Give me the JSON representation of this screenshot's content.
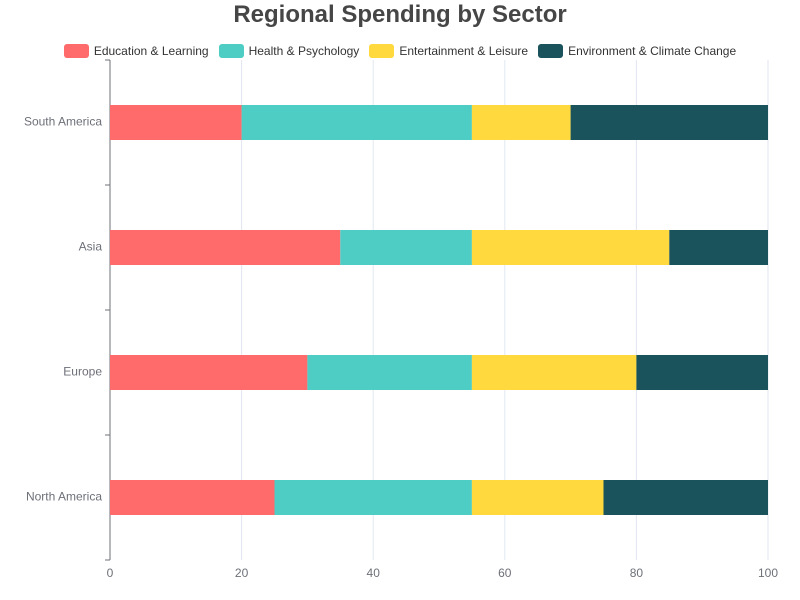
{
  "chart_data": {
    "type": "bar",
    "orientation": "horizontal",
    "stacked": true,
    "title": "Regional Spending by Sector",
    "categories": [
      "North America",
      "Europe",
      "Asia",
      "South America"
    ],
    "series": [
      {
        "name": "Education & Learning",
        "color": "#ff6b6b",
        "values": [
          25,
          30,
          35,
          20
        ]
      },
      {
        "name": "Health & Psychology",
        "color": "#4ecdc4",
        "values": [
          30,
          25,
          20,
          35
        ]
      },
      {
        "name": "Entertainment & Leisure",
        "color": "#ffd93d",
        "values": [
          20,
          25,
          30,
          15
        ]
      },
      {
        "name": "Environment & Climate Change",
        "color": "#1a535c",
        "values": [
          25,
          20,
          15,
          30
        ]
      }
    ],
    "xlim": [
      0,
      100
    ],
    "x_ticks": [
      "0",
      "20",
      "40",
      "60",
      "80",
      "100"
    ],
    "grid": true,
    "legend_position": "top-center"
  }
}
